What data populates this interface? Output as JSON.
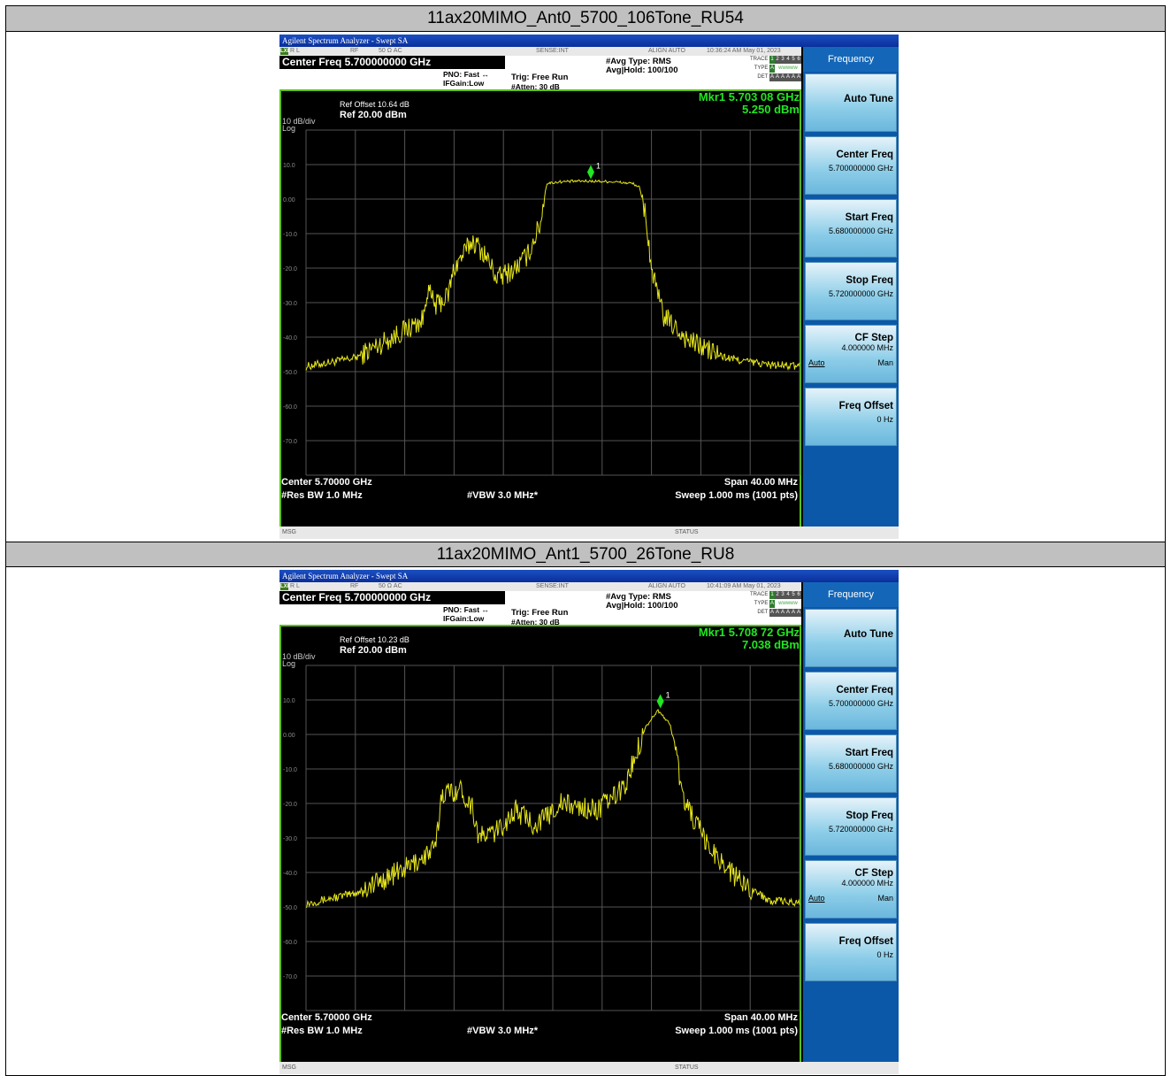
{
  "panels": [
    {
      "title": "11ax20MIMO_Ant0_5700_106Tone_RU54",
      "window_title": "Agilent Spectrum Analyzer - Swept SA",
      "status": {
        "rl": "R L",
        "rf": "RF",
        "ohm": "50 Ω   AC",
        "sense": "SENSE:INT",
        "align": "ALIGN AUTO",
        "datetime": "10:36:24 AM May 01, 2023"
      },
      "center_freq_label": "Center Freq 5.700000000 GHz",
      "pno": "PNO: Fast  ↔",
      "ifgain": "IFGain:Low",
      "trig": "Trig: Free Run",
      "atten": "#Atten: 30 dB",
      "avg_type": "#Avg Type: RMS",
      "avg_hold": "Avg|Hold: 100/100",
      "trace_label": "TRACE",
      "type_label": "TYPE",
      "det_label": "DET",
      "ref_offset": "Ref Offset 10.64 dB",
      "ref_level": "Ref 20.00 dBm",
      "scale": "10 dB/div",
      "log": "Log",
      "marker_freq": "Mkr1 5.703 08 GHz",
      "marker_amp": "5.250 dBm",
      "marker_num": "1",
      "center_label": "Center 5.70000 GHz",
      "span_label": "Span 40.00 MHz",
      "rbw": "#Res BW 1.0 MHz",
      "vbw": "#VBW 3.0 MHz*",
      "sweep": "Sweep  1.000 ms (1001 pts)",
      "msg": "MSG",
      "status_label": "STATUS",
      "chart_data": {
        "type": "line",
        "xlabel": "",
        "ylabel": "",
        "xlim": [
          5.68,
          5.72
        ],
        "ylim": [
          -80,
          20
        ],
        "y_ticks": [
          "10.0",
          "0.00",
          "-10.0",
          "-20.0",
          "-30.0",
          "-40.0",
          "-50.0",
          "-60.0",
          "-70.0"
        ],
        "x": [
          5.68,
          5.684,
          5.688,
          5.6895,
          5.6898,
          5.6905,
          5.6915,
          5.692,
          5.6935,
          5.6945,
          5.6955,
          5.697,
          5.698,
          5.699,
          5.6995,
          5.7005,
          5.702,
          5.7035,
          5.705,
          5.7065,
          5.707,
          5.7075,
          5.708,
          5.7085,
          5.709,
          5.711,
          5.714,
          5.7175,
          5.72
        ],
        "y": [
          -48.5,
          -46,
          -38,
          -35,
          -26,
          -31,
          -28,
          -20,
          -12,
          -16,
          -23,
          -20,
          -16,
          -7,
          4.5,
          5,
          5.2,
          5.2,
          5,
          4.5,
          3.5,
          -4,
          -20,
          -28,
          -34,
          -41,
          -46,
          -48,
          -48.5
        ],
        "marker": {
          "x": 5.70308,
          "y": 5.25,
          "label": "1"
        }
      }
    },
    {
      "title": "11ax20MIMO_Ant1_5700_26Tone_RU8",
      "window_title": "Agilent Spectrum Analyzer - Swept SA",
      "status": {
        "rl": "R L",
        "rf": "RF",
        "ohm": "50 Ω   AC",
        "sense": "SENSE:INT",
        "align": "ALIGN AUTO",
        "datetime": "10:41:09 AM May 01, 2023"
      },
      "center_freq_label": "Center Freq 5.700000000 GHz",
      "pno": "PNO: Fast  ↔",
      "ifgain": "IFGain:Low",
      "trig": "Trig: Free Run",
      "atten": "#Atten: 30 dB",
      "avg_type": "#Avg Type: RMS",
      "avg_hold": "Avg|Hold: 100/100",
      "trace_label": "TRACE",
      "type_label": "TYPE",
      "det_label": "DET",
      "ref_offset": "Ref Offset 10.23 dB",
      "ref_level": "Ref 20.00 dBm",
      "scale": "10 dB/div",
      "log": "Log",
      "marker_freq": "Mkr1 5.708 72 GHz",
      "marker_amp": "7.038 dBm",
      "marker_num": "1",
      "center_label": "Center 5.70000 GHz",
      "span_label": "Span 40.00 MHz",
      "rbw": "#Res BW 1.0 MHz",
      "vbw": "#VBW 3.0 MHz*",
      "sweep": "Sweep  1.000 ms (1001 pts)",
      "msg": "MSG",
      "status_label": "STATUS",
      "chart_data": {
        "type": "line",
        "xlabel": "",
        "ylabel": "",
        "xlim": [
          5.68,
          5.72
        ],
        "ylim": [
          -80,
          20
        ],
        "y_ticks": [
          "10.0",
          "0.00",
          "-10.0",
          "-20.0",
          "-30.0",
          "-40.0",
          "-50.0",
          "-60.0",
          "-70.0"
        ],
        "x": [
          5.68,
          5.684,
          5.6885,
          5.6905,
          5.691,
          5.6925,
          5.6935,
          5.694,
          5.6955,
          5.697,
          5.6985,
          5.6995,
          5.7005,
          5.702,
          5.7035,
          5.705,
          5.706,
          5.7065,
          5.7075,
          5.7085,
          5.7095,
          5.71,
          5.7105,
          5.7125,
          5.715,
          5.7175,
          5.72
        ],
        "y": [
          -49,
          -46,
          -38,
          -33,
          -17,
          -16,
          -21,
          -30,
          -28,
          -22,
          -26,
          -24,
          -20,
          -21,
          -22,
          -18,
          -14,
          -8,
          2,
          7,
          3,
          -5,
          -18,
          -32,
          -42,
          -48,
          -49
        ],
        "marker": {
          "x": 5.70872,
          "y": 7.038,
          "label": "1"
        }
      }
    }
  ],
  "softkeys": {
    "header": "Frequency",
    "auto_tune": "Auto Tune",
    "center_freq": "Center Freq",
    "center_freq_val": "5.700000000 GHz",
    "start_freq": "Start Freq",
    "start_freq_val": "5.680000000 GHz",
    "stop_freq": "Stop Freq",
    "stop_freq_val": "5.720000000 GHz",
    "cf_step": "CF Step",
    "cf_step_val": "4.000000 MHz",
    "cf_auto": "Auto",
    "cf_man": "Man",
    "freq_offset": "Freq Offset",
    "freq_offset_val": "0 Hz"
  },
  "colors": {
    "trace": "#e6e61a",
    "marker": "#21e621",
    "grid": "#555555",
    "plot_border": "#5ac21a"
  }
}
